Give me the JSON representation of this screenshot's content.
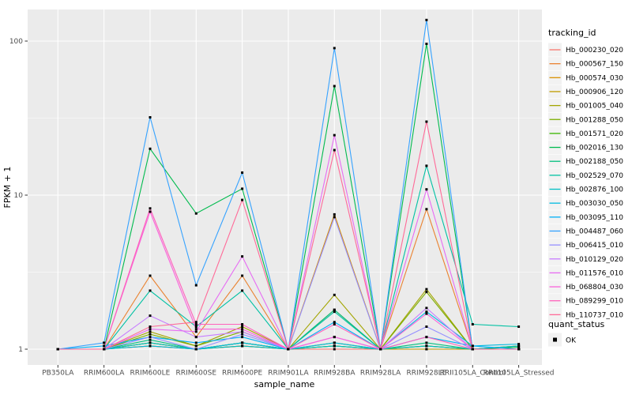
{
  "chart_data": {
    "type": "line",
    "title": "",
    "xlabel": "sample_name",
    "ylabel": "FPKM + 1",
    "y_scale": "log10",
    "y_ticks": [
      1,
      10,
      100
    ],
    "y_minor_ticks": [
      3.162,
      31.62
    ],
    "ylim": [
      0.79,
      160
    ],
    "grid": true,
    "panel_bg": "#EBEBEB",
    "grid_color": "#FFFFFF",
    "point_shape": "filled-square",
    "point_color": "#000000",
    "legend_position": "right",
    "legend_key_bg": "#F2F2F2",
    "categories": [
      "PB350LA",
      "RRIM600LA",
      "RRIM600LE",
      "RRIM600SE",
      "RRIM600PE",
      "RRIM901LA",
      "RRIM928BA",
      "RRIM928LA",
      "RRIM928LE",
      "RRII105LA_Control",
      "RRII105LA_Stressed"
    ],
    "legend": {
      "series_title": "tracking_id",
      "shape_title": "quant_status",
      "shape_items": [
        {
          "label": "OK"
        }
      ]
    },
    "series": [
      {
        "name": "Hb_000230_020",
        "color": "#F8766D",
        "values": [
          1,
          1,
          1.05,
          1,
          1.05,
          1,
          1,
          1,
          1,
          1,
          1
        ]
      },
      {
        "name": "Hb_000567_150",
        "color": "#EA8331",
        "values": [
          1,
          1,
          3.0,
          1.2,
          3.0,
          1,
          1.8,
          1,
          8.1,
          1,
          1
        ]
      },
      {
        "name": "Hb_000574_030",
        "color": "#D89000",
        "values": [
          1,
          1,
          1.1,
          1,
          1.1,
          1,
          7.5,
          1,
          1.05,
          1,
          1
        ]
      },
      {
        "name": "Hb_000906_120",
        "color": "#C09B00",
        "values": [
          1,
          1,
          1.05,
          1,
          1.05,
          1,
          1.05,
          1,
          1,
          1,
          1
        ]
      },
      {
        "name": "Hb_001005_040",
        "color": "#A3A500",
        "values": [
          1,
          1,
          1.3,
          1.05,
          1.4,
          1,
          2.25,
          1,
          2.45,
          1,
          1.05
        ]
      },
      {
        "name": "Hb_001288_050",
        "color": "#7CAE00",
        "values": [
          1,
          1,
          1.25,
          1.05,
          1.3,
          1,
          1.1,
          1,
          2.35,
          1,
          1.05
        ]
      },
      {
        "name": "Hb_001571_020",
        "color": "#39B600",
        "values": [
          1,
          1,
          1.1,
          1,
          1.1,
          1,
          1.05,
          1,
          1.05,
          1,
          1
        ]
      },
      {
        "name": "Hb_002016_130",
        "color": "#00BB4E",
        "values": [
          1,
          1,
          20,
          7.6,
          11,
          1,
          51,
          1,
          96,
          1,
          1.03
        ]
      },
      {
        "name": "Hb_002188_050",
        "color": "#00BF7D",
        "values": [
          1,
          1,
          1.15,
          1,
          1.1,
          1,
          1.8,
          1,
          1.1,
          1,
          1
        ]
      },
      {
        "name": "Hb_002529_070",
        "color": "#00C1A3",
        "values": [
          1,
          1,
          2.4,
          1.4,
          2.4,
          1,
          1.75,
          1,
          15.5,
          1.45,
          1.4
        ]
      },
      {
        "name": "Hb_002876_100",
        "color": "#00BFC4",
        "values": [
          1,
          1,
          1.1,
          1,
          1.05,
          1,
          1.05,
          1,
          1.05,
          1,
          1.05
        ]
      },
      {
        "name": "Hb_003030_050",
        "color": "#00BAE0",
        "values": [
          1,
          1,
          1.05,
          1,
          1.1,
          1,
          1.1,
          1,
          1.75,
          1.05,
          1.08
        ]
      },
      {
        "name": "Hb_003095_110",
        "color": "#00B0F6",
        "values": [
          1,
          1.05,
          1.2,
          1.1,
          1.2,
          1,
          1.5,
          1,
          1.2,
          1.05,
          1
        ]
      },
      {
        "name": "Hb_004487_060",
        "color": "#35A2FF",
        "values": [
          1,
          1.1,
          32,
          2.6,
          14,
          1,
          90,
          1,
          137,
          1,
          1
        ]
      },
      {
        "name": "Hb_006415_010",
        "color": "#9590FF",
        "values": [
          1,
          1,
          1.2,
          1,
          1.25,
          1,
          7.2,
          1,
          1.4,
          1,
          1
        ]
      },
      {
        "name": "Hb_010129_020",
        "color": "#C77CFF",
        "values": [
          1,
          1,
          1.65,
          1.2,
          1.3,
          1,
          1.2,
          1,
          1.85,
          1,
          1
        ]
      },
      {
        "name": "Hb_011576_010",
        "color": "#E76BF3",
        "values": [
          1,
          1,
          1.35,
          1.3,
          4.0,
          1,
          24.5,
          1,
          10.9,
          1,
          1
        ]
      },
      {
        "name": "Hb_068804_030",
        "color": "#FA62DB",
        "values": [
          1,
          1,
          7.8,
          1.35,
          1.35,
          1,
          1.2,
          1,
          1.7,
          1,
          1
        ]
      },
      {
        "name": "Hb_089299_010",
        "color": "#FF62BC",
        "values": [
          1,
          1,
          8.2,
          1.45,
          1.45,
          1,
          1.45,
          1,
          1.2,
          1,
          1
        ]
      },
      {
        "name": "Hb_110737_010",
        "color": "#FF6A98",
        "values": [
          1,
          1,
          1.4,
          1.5,
          9.3,
          1,
          19.6,
          1,
          30,
          1,
          1
        ]
      }
    ]
  }
}
